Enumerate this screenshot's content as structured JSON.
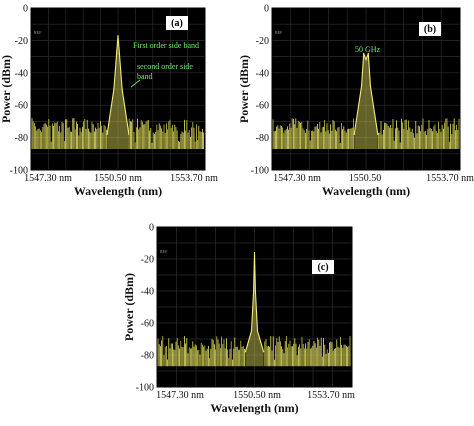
{
  "chart_data": [
    {
      "type": "line",
      "panel_label": "(a)",
      "ylabel": "Power (dBm)",
      "xlabel": "Wavelength (nm)",
      "ylim": [
        -100,
        0
      ],
      "yticks": [
        "0",
        "-20",
        "-40",
        "-60",
        "-80",
        "-100"
      ],
      "xticks": [
        "1547.30 nm",
        "1550.50 nm",
        "1553.70 nm"
      ],
      "xlim": [
        1547.3,
        1553.7
      ],
      "ref_text": "REF",
      "noise_floor_dBm": [
        -85,
        -68
      ],
      "series": [
        {
          "x": [
            1550.1,
            1550.35,
            1550.45,
            1550.5,
            1550.55,
            1550.65,
            1550.9
          ],
          "y": [
            -78,
            -50,
            -28,
            -17,
            -28,
            -50,
            -78
          ]
        }
      ],
      "annotations": [
        {
          "text": "First order side band",
          "x": 1550.55,
          "y": -23
        },
        {
          "text": "second order side band",
          "x": 1550.65,
          "y": -44
        }
      ],
      "grid": true
    },
    {
      "type": "line",
      "panel_label": "(b)",
      "ylabel": "Power (dBm)",
      "xlabel": "Wavelength (nm)",
      "ylim": [
        -100,
        0
      ],
      "yticks": [
        "0",
        "-20",
        "-40",
        "-60",
        "-80",
        "-100"
      ],
      "xticks": [
        "1547.30 nm",
        "1550.50",
        "1553.70 nm"
      ],
      "xlim": [
        1547.3,
        1553.7
      ],
      "ref_text": "REF",
      "noise_floor_dBm": [
        -85,
        -68
      ],
      "series": [
        {
          "x": [
            1550.1,
            1550.35,
            1550.42,
            1550.5,
            1550.58,
            1550.65,
            1550.9
          ],
          "y": [
            -78,
            -48,
            -28,
            -32,
            -28,
            -48,
            -78
          ]
        }
      ],
      "annotations": [
        {
          "text": "50 GHz",
          "x": 1550.5,
          "y": -22
        }
      ],
      "grid": true
    },
    {
      "type": "line",
      "panel_label": "(c)",
      "ylabel": "Power (dBm)",
      "xlabel": "Wavelength (nm)",
      "ylim": [
        -100,
        0
      ],
      "yticks": [
        "0",
        "-20",
        "-40",
        "-60",
        "-80",
        "-100"
      ],
      "xticks": [
        "1547.30 nm",
        "1550.50 nm",
        "1553.70 nm"
      ],
      "xlim": [
        1547.3,
        1553.7
      ],
      "ref_text": "REF",
      "noise_floor_dBm": [
        -85,
        -68
      ],
      "series": [
        {
          "x": [
            1550.2,
            1550.4,
            1550.47,
            1550.5,
            1550.53,
            1550.6,
            1550.8
          ],
          "y": [
            -78,
            -65,
            -40,
            -16,
            -40,
            -65,
            -78
          ]
        }
      ],
      "annotations": [],
      "grid": true
    }
  ]
}
